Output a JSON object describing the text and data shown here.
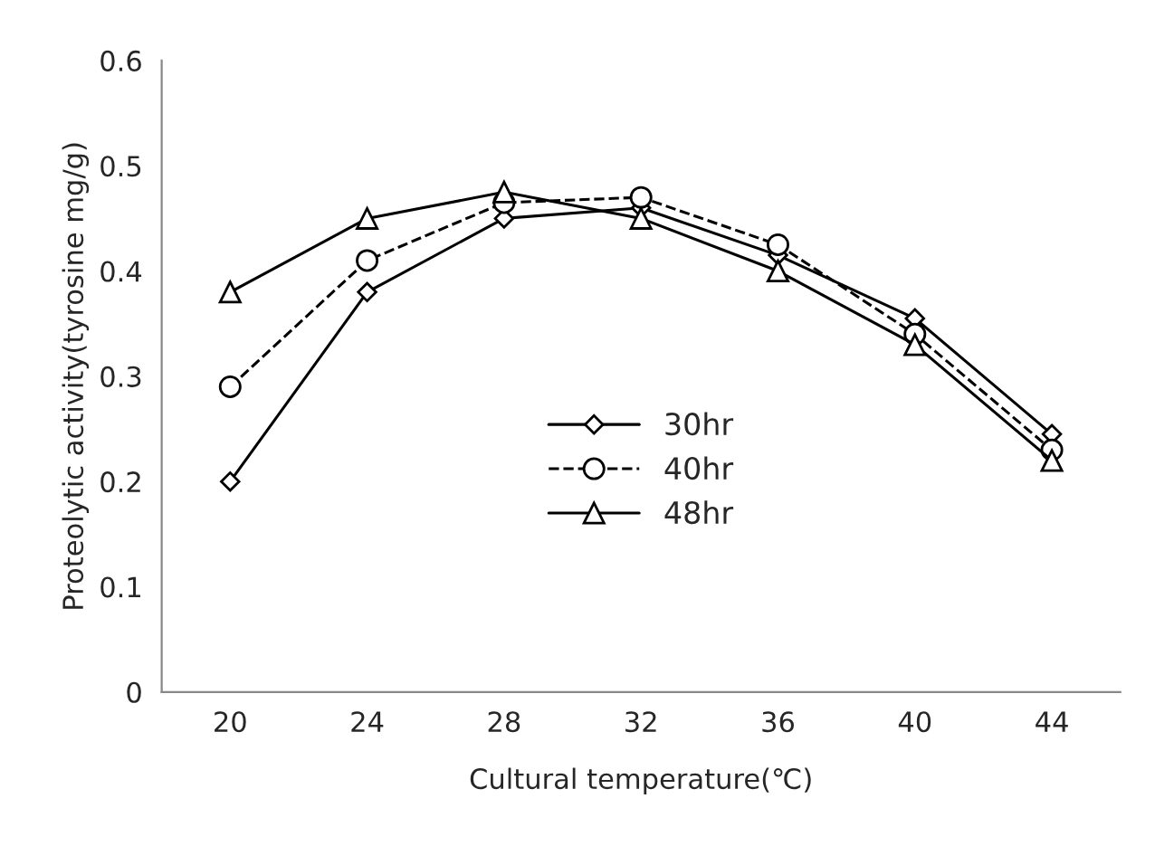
{
  "chart_data": {
    "type": "line",
    "xlabel": "Cultural temperature(℃)",
    "ylabel": "Proteolytic activity(tyrosine mg/g)",
    "categories": [
      "20",
      "24",
      "28",
      "32",
      "36",
      "40",
      "44"
    ],
    "series": [
      {
        "name": "30hr",
        "color": "#000000",
        "marker": "diamond",
        "line_style": "solid",
        "values": [
          0.2,
          0.38,
          0.45,
          0.46,
          0.415,
          0.355,
          0.245
        ]
      },
      {
        "name": "40hr",
        "color": "#000000",
        "marker": "circle",
        "line_style": "dashed",
        "values": [
          0.29,
          0.41,
          0.465,
          0.47,
          0.425,
          0.34,
          0.23
        ]
      },
      {
        "name": "48hr",
        "color": "#000000",
        "marker": "triangle",
        "line_style": "solid",
        "values": [
          0.38,
          0.45,
          0.475,
          0.45,
          0.4,
          0.33,
          0.22
        ]
      }
    ],
    "ylim": [
      0,
      0.6
    ],
    "yticks": [
      0,
      0.1,
      0.2,
      0.3,
      0.4,
      0.5,
      0.6
    ],
    "grid": false,
    "legend": "center"
  }
}
